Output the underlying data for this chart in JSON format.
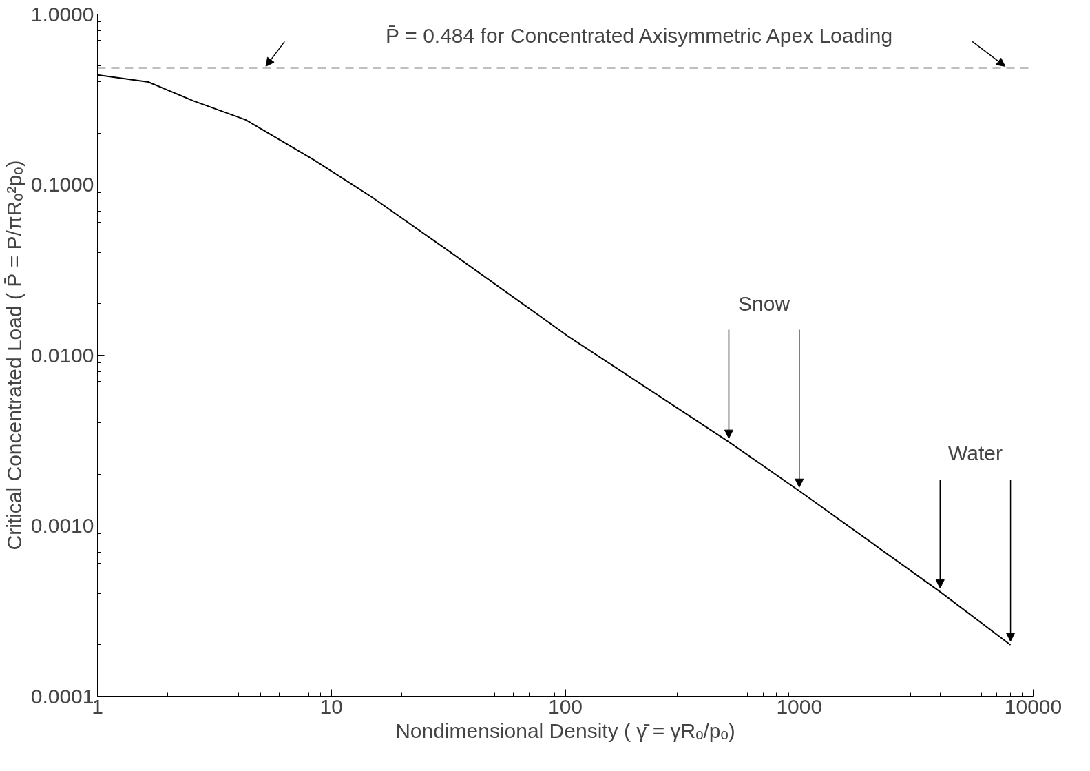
{
  "chart_data": {
    "type": "line",
    "xlabel": "Nondimensional Density ( γ̄ = γRₒ/pₒ)",
    "ylabel": "Critical Concentrated Load ( P̄ = P/πRₒ²pₒ)",
    "log": "xy",
    "grid": false,
    "marker": "none",
    "line_style": "solid",
    "x": [
      1,
      1.65,
      2.57,
      4.3,
      8.4,
      15,
      31.6,
      102,
      500,
      1000,
      4000,
      8000
    ],
    "series": [
      {
        "color": "#000000",
        "values": [
          0.44,
          0.4,
          0.31,
          0.24,
          0.14,
          0.084,
          0.041,
          0.013,
          0.0031,
          0.0016,
          0.00041,
          0.0002
        ]
      }
    ],
    "xlim": [
      1,
      10000
    ],
    "xticks": [
      1,
      10,
      100,
      1000,
      10000
    ],
    "ylim": [
      0.0001,
      1
    ],
    "yticks": [
      {
        "value": 0.0001,
        "label": "0.0001"
      },
      {
        "value": 0.001,
        "label": "0.0010"
      },
      {
        "value": 0.01,
        "label": "0.0100"
      },
      {
        "value": 0.1,
        "label": "0.1000"
      },
      {
        "value": 1,
        "label": "1.0000"
      }
    ],
    "ref_lines": [
      {
        "axis": "y",
        "value": 0.484,
        "label": "P̄ = 0.484 for Concentrated Axisymmetric Apex Loading",
        "color": "#000000",
        "line_style": "dashed"
      }
    ],
    "annotations": [
      {
        "text": "Snow",
        "x": 500,
        "y": 0.0031
      },
      {
        "text": "Water",
        "x": 4000,
        "y": 0.00041
      }
    ]
  }
}
